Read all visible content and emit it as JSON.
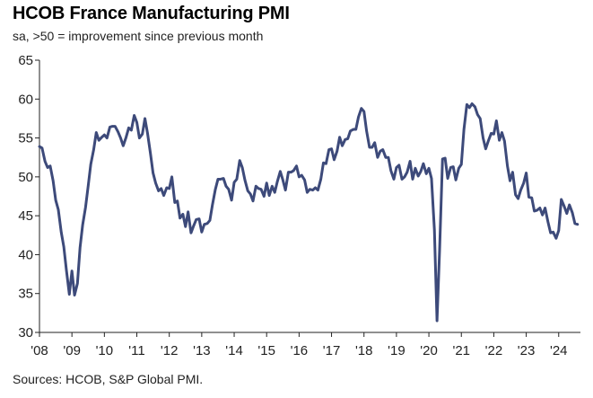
{
  "header": {
    "title": "HCOB France Manufacturing PMI",
    "subtitle": "sa, >50 = improvement since previous month"
  },
  "footer": {
    "source": "Sources: HCOB, S&P Global PMI."
  },
  "colors": {
    "line": "#3d4a7a",
    "axis": "#222222"
  },
  "chart_data": {
    "type": "line",
    "title": "HCOB France Manufacturing PMI",
    "subtitle": "sa, >50 = improvement since previous month",
    "xlabel": "",
    "ylabel": "",
    "ylim": [
      30,
      65
    ],
    "yticks": [
      30,
      35,
      40,
      45,
      50,
      55,
      60,
      65
    ],
    "xlim": [
      2008.0,
      2024.67
    ],
    "xticks": [
      {
        "label": "'08",
        "value": 2008
      },
      {
        "label": "'09",
        "value": 2009
      },
      {
        "label": "'10",
        "value": 2010
      },
      {
        "label": "'11",
        "value": 2011
      },
      {
        "label": "'12",
        "value": 2012
      },
      {
        "label": "'13",
        "value": 2013
      },
      {
        "label": "'14",
        "value": 2014
      },
      {
        "label": "'15",
        "value": 2015
      },
      {
        "label": "'16",
        "value": 2016
      },
      {
        "label": "'17",
        "value": 2017
      },
      {
        "label": "'18",
        "value": 2018
      },
      {
        "label": "'19",
        "value": 2019
      },
      {
        "label": "'20",
        "value": 2020
      },
      {
        "label": "'21",
        "value": 2021
      },
      {
        "label": "'22",
        "value": 2022
      },
      {
        "label": "'23",
        "value": 2023
      },
      {
        "label": "'24",
        "value": 2024
      }
    ],
    "grid": false,
    "series": [
      {
        "name": "HCOB France Manufacturing PMI",
        "x": [
          2008.0,
          2008.08,
          2008.17,
          2008.25,
          2008.33,
          2008.42,
          2008.5,
          2008.58,
          2008.67,
          2008.75,
          2008.83,
          2008.92,
          2009.0,
          2009.08,
          2009.17,
          2009.25,
          2009.33,
          2009.42,
          2009.5,
          2009.58,
          2009.67,
          2009.75,
          2009.83,
          2009.92,
          2010.0,
          2010.08,
          2010.17,
          2010.25,
          2010.33,
          2010.42,
          2010.5,
          2010.58,
          2010.67,
          2010.75,
          2010.83,
          2010.92,
          2011.0,
          2011.08,
          2011.17,
          2011.25,
          2011.33,
          2011.42,
          2011.5,
          2011.58,
          2011.67,
          2011.75,
          2011.83,
          2011.92,
          2012.0,
          2012.08,
          2012.17,
          2012.25,
          2012.33,
          2012.42,
          2012.5,
          2012.58,
          2012.67,
          2012.75,
          2012.83,
          2012.92,
          2013.0,
          2013.08,
          2013.17,
          2013.25,
          2013.33,
          2013.42,
          2013.5,
          2013.58,
          2013.67,
          2013.75,
          2013.83,
          2013.92,
          2014.0,
          2014.08,
          2014.17,
          2014.25,
          2014.33,
          2014.42,
          2014.5,
          2014.58,
          2014.67,
          2014.75,
          2014.83,
          2014.92,
          2015.0,
          2015.08,
          2015.17,
          2015.25,
          2015.33,
          2015.42,
          2015.5,
          2015.58,
          2015.67,
          2015.75,
          2015.83,
          2015.92,
          2016.0,
          2016.08,
          2016.17,
          2016.25,
          2016.33,
          2016.42,
          2016.5,
          2016.58,
          2016.67,
          2016.75,
          2016.83,
          2016.92,
          2017.0,
          2017.08,
          2017.17,
          2017.25,
          2017.33,
          2017.42,
          2017.5,
          2017.58,
          2017.67,
          2017.75,
          2017.83,
          2017.92,
          2018.0,
          2018.08,
          2018.17,
          2018.25,
          2018.33,
          2018.42,
          2018.5,
          2018.58,
          2018.67,
          2018.75,
          2018.83,
          2018.92,
          2019.0,
          2019.08,
          2019.17,
          2019.25,
          2019.33,
          2019.42,
          2019.5,
          2019.58,
          2019.67,
          2019.75,
          2019.83,
          2019.92,
          2020.0,
          2020.08,
          2020.17,
          2020.25,
          2020.33,
          2020.42,
          2020.5,
          2020.58,
          2020.67,
          2020.75,
          2020.83,
          2020.92,
          2021.0,
          2021.08,
          2021.17,
          2021.25,
          2021.33,
          2021.42,
          2021.5,
          2021.58,
          2021.67,
          2021.75,
          2021.83,
          2021.92,
          2022.0,
          2022.08,
          2022.17,
          2022.25,
          2022.33,
          2022.42,
          2022.5,
          2022.58,
          2022.67,
          2022.75,
          2022.83,
          2022.92,
          2023.0,
          2023.08,
          2023.17,
          2023.25,
          2023.33,
          2023.42,
          2023.5,
          2023.58,
          2023.67,
          2023.75,
          2023.83,
          2023.92,
          2024.0,
          2024.08,
          2024.17,
          2024.25,
          2024.33,
          2024.42,
          2024.5,
          2024.58
        ],
        "values": [
          53.9,
          53.7,
          52.0,
          51.2,
          51.4,
          49.5,
          47.0,
          45.8,
          42.9,
          41.0,
          38.0,
          34.9,
          37.9,
          34.8,
          36.3,
          40.9,
          43.8,
          46.1,
          48.8,
          51.6,
          53.5,
          55.7,
          54.7,
          55.1,
          55.4,
          55.0,
          56.4,
          56.5,
          56.5,
          55.8,
          55.0,
          54.0,
          55.1,
          56.3,
          56.0,
          57.9,
          57.0,
          55.0,
          55.5,
          57.5,
          55.6,
          53.0,
          50.5,
          49.2,
          48.2,
          48.5,
          47.6,
          48.6,
          48.5,
          50.0,
          46.7,
          46.9,
          44.7,
          45.2,
          43.6,
          45.5,
          42.8,
          43.7,
          44.5,
          44.6,
          42.9,
          43.9,
          44.0,
          44.4,
          46.4,
          48.4,
          49.7,
          49.7,
          49.8,
          48.8,
          48.4,
          47.0,
          49.3,
          49.7,
          52.1,
          51.2,
          49.6,
          48.2,
          47.8,
          46.9,
          48.8,
          48.5,
          48.4,
          47.5,
          49.2,
          47.6,
          48.8,
          48.0,
          49.4,
          50.7,
          49.6,
          48.3,
          50.6,
          50.6,
          50.8,
          51.4,
          50.0,
          50.2,
          49.6,
          48.0,
          48.4,
          48.3,
          48.6,
          48.3,
          49.7,
          51.8,
          51.7,
          53.5,
          53.6,
          52.2,
          53.3,
          55.1,
          54.0,
          54.8,
          54.9,
          55.9,
          56.1,
          56.1,
          57.7,
          58.8,
          58.4,
          55.9,
          53.8,
          53.8,
          54.4,
          52.5,
          53.3,
          53.5,
          52.5,
          52.5,
          50.8,
          49.7,
          51.2,
          51.5,
          49.7,
          50.0,
          50.6,
          52.0,
          49.7,
          51.1,
          50.1,
          50.7,
          51.7,
          50.4,
          51.1,
          49.8,
          43.2,
          31.5,
          40.6,
          52.3,
          52.4,
          49.8,
          51.2,
          51.3,
          49.6,
          51.1,
          51.6,
          56.1,
          59.3,
          58.9,
          59.4,
          59.0,
          58.0,
          57.5,
          55.0,
          53.6,
          54.6,
          55.6,
          55.5,
          57.2,
          54.7,
          55.7,
          54.6,
          51.4,
          49.5,
          50.6,
          47.7,
          47.2,
          48.3,
          49.2,
          50.5,
          47.4,
          47.3,
          45.6,
          45.7,
          46.0,
          45.1,
          46.0,
          44.2,
          42.8,
          42.9,
          42.1,
          43.1,
          47.1,
          46.2,
          45.3,
          46.4,
          45.4,
          44.0,
          43.9
        ]
      }
    ]
  }
}
